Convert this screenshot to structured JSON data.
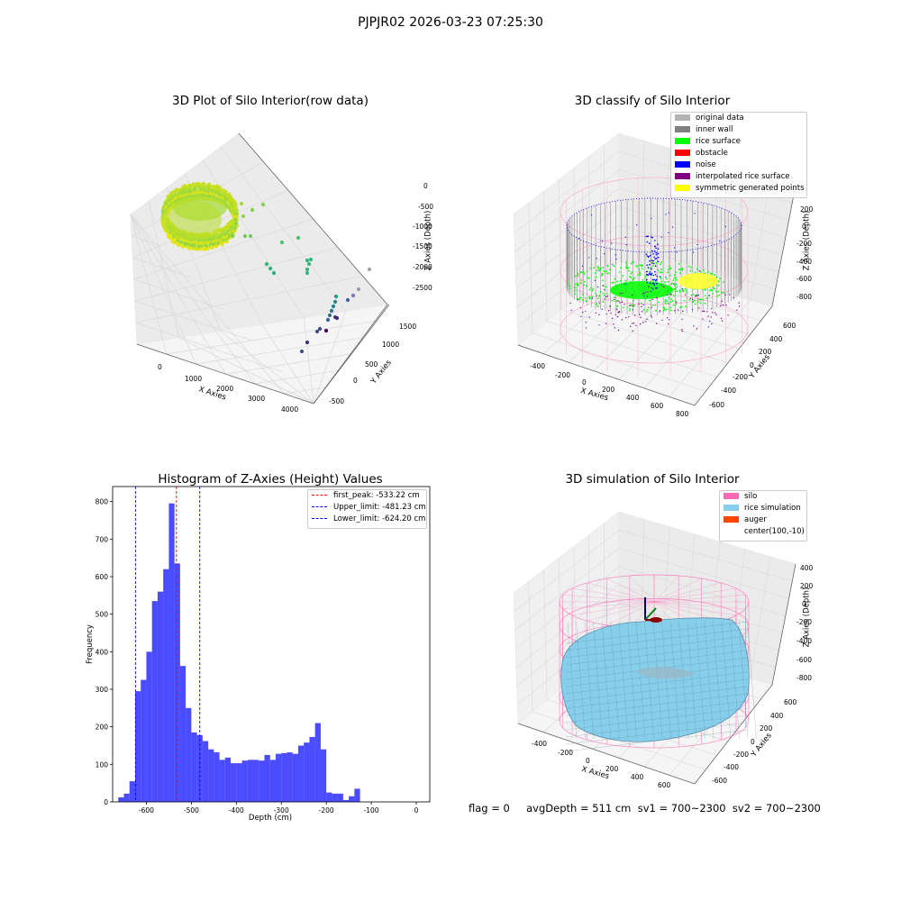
{
  "figure": {
    "suptitle": "PJPJR02 2026-03-23 07:25:30"
  },
  "status": {
    "text": "flag = 0     avgDepth = 511 cm  sv1 = 700~2300  sv2 = 700~2300"
  },
  "chart_data": [
    {
      "type": "scatter",
      "projection": "3d",
      "title": "3D Plot of Silo Interior(row data)",
      "xlabel": "X Axies",
      "ylabel": "Y Axies",
      "zlabel": "Z Axies (Depth)",
      "xticks": [
        "0",
        "1000",
        "2000",
        "3000",
        "4000"
      ],
      "yticks": [
        "-500",
        "0",
        "500",
        "1000",
        "1500"
      ],
      "zticks": [
        "0",
        "-500",
        "-1000",
        "-1500",
        "-2000",
        "-2500"
      ],
      "colormap": "viridis",
      "series": [
        {
          "description_points": "main silo ring",
          "x": [
            -300,
            -200,
            0,
            200,
            400,
            500,
            400,
            200,
            0,
            -200,
            -300
          ],
          "y": [
            0,
            400,
            600,
            600,
            400,
            0,
            -400,
            -600,
            -600,
            -400,
            0
          ],
          "z": [
            -500,
            -500,
            -480,
            -500,
            -520,
            -500,
            -480,
            -500,
            -520,
            -500,
            -500
          ]
        },
        {
          "description_points": "outlier trail",
          "x": [
            800,
            1000,
            1200,
            1600,
            1900,
            2100,
            2300,
            2600,
            2800,
            3000,
            3200,
            3400,
            3500,
            3600,
            3700
          ],
          "y": [
            500,
            700,
            600,
            800,
            900,
            1000,
            900,
            700,
            600,
            400,
            200,
            100,
            0,
            -100,
            -300
          ],
          "z": [
            -600,
            -800,
            -1000,
            -1100,
            -1300,
            -1500,
            -1700,
            -1800,
            -1900,
            -2000,
            -2100,
            -2200,
            -2300,
            -2400,
            -2500
          ]
        }
      ]
    },
    {
      "type": "scatter",
      "projection": "3d",
      "title": "3D classify of Silo Interior",
      "xlabel": "X Axies",
      "ylabel": "Y Axies",
      "zlabel": "Z Axies (Depth)",
      "xticks": [
        "-400",
        "-200",
        "0",
        "200",
        "400",
        "600",
        "800"
      ],
      "yticks": [
        "-600",
        "-400",
        "-200",
        "0",
        "200",
        "400",
        "600"
      ],
      "zticks": [
        "200",
        "0",
        "-200",
        "-400",
        "-600",
        "-800"
      ],
      "legend_position": "top-right",
      "legend": [
        {
          "label": "original data",
          "color": "#b3b3b3"
        },
        {
          "label": "inner wall",
          "color": "#808080"
        },
        {
          "label": "rice surface",
          "color": "#00ff00"
        },
        {
          "label": "obstacle",
          "color": "#ff0000"
        },
        {
          "label": "noise",
          "color": "#0000ff"
        },
        {
          "label": "interpolated rice surface",
          "color": "#800080"
        },
        {
          "label": "symmetric generated points",
          "color": "#ffff00"
        }
      ]
    },
    {
      "type": "bar",
      "title": "Histogram of Z-Axies (Height) Values",
      "xlabel": "Depth (cm)",
      "ylabel": "Frequency",
      "xlim": [
        -675,
        30
      ],
      "ylim": [
        0,
        840
      ],
      "xticks": [
        -600,
        -500,
        -400,
        -300,
        -200,
        -100,
        0
      ],
      "yticks": [
        0,
        100,
        200,
        300,
        400,
        500,
        600,
        700,
        800
      ],
      "bin_width": 12.5,
      "bin_start": -662.5,
      "values": [
        12,
        22,
        55,
        295,
        325,
        400,
        535,
        560,
        620,
        795,
        635,
        362,
        250,
        185,
        178,
        162,
        140,
        132,
        112,
        118,
        103,
        103,
        110,
        112,
        112,
        110,
        125,
        112,
        128,
        130,
        132,
        128,
        150,
        158,
        173,
        210,
        140,
        25,
        22,
        22,
        5,
        15,
        35
      ],
      "color": "#0000ff",
      "lines": [
        {
          "label": "first_peak: -533.22 cm",
          "x": -533.22,
          "color": "#ff0000"
        },
        {
          "label": "Upper_limit: -481.23 cm",
          "x": -481.23,
          "color": "#0000ff"
        },
        {
          "label": "Lower_limit: -624.20 cm",
          "x": -624.2,
          "color": "#0000ff"
        }
      ],
      "legend_position": "top-right"
    },
    {
      "type": "scatter",
      "projection": "3d",
      "title": "3D simulation of Silo Interior",
      "xlabel": "X Axies",
      "ylabel": "Y Axies",
      "zlabel": "Z Axies (Depth)",
      "xticks": [
        "-400",
        "-200",
        "0",
        "200",
        "400",
        "600"
      ],
      "yticks": [
        "-600",
        "-400",
        "-200",
        "0",
        "200",
        "400",
        "600"
      ],
      "zticks": [
        "400",
        "200",
        "0",
        "-200",
        "-400",
        "-600",
        "-800"
      ],
      "legend_position": "top-right",
      "legend": [
        {
          "label": "silo",
          "color": "#ff69b4"
        },
        {
          "label": "rice simulation",
          "color": "#87ceeb"
        },
        {
          "label": "auger",
          "color": "#ff4500"
        },
        {
          "label": "center(100,-10)",
          "color": ""
        }
      ]
    }
  ]
}
